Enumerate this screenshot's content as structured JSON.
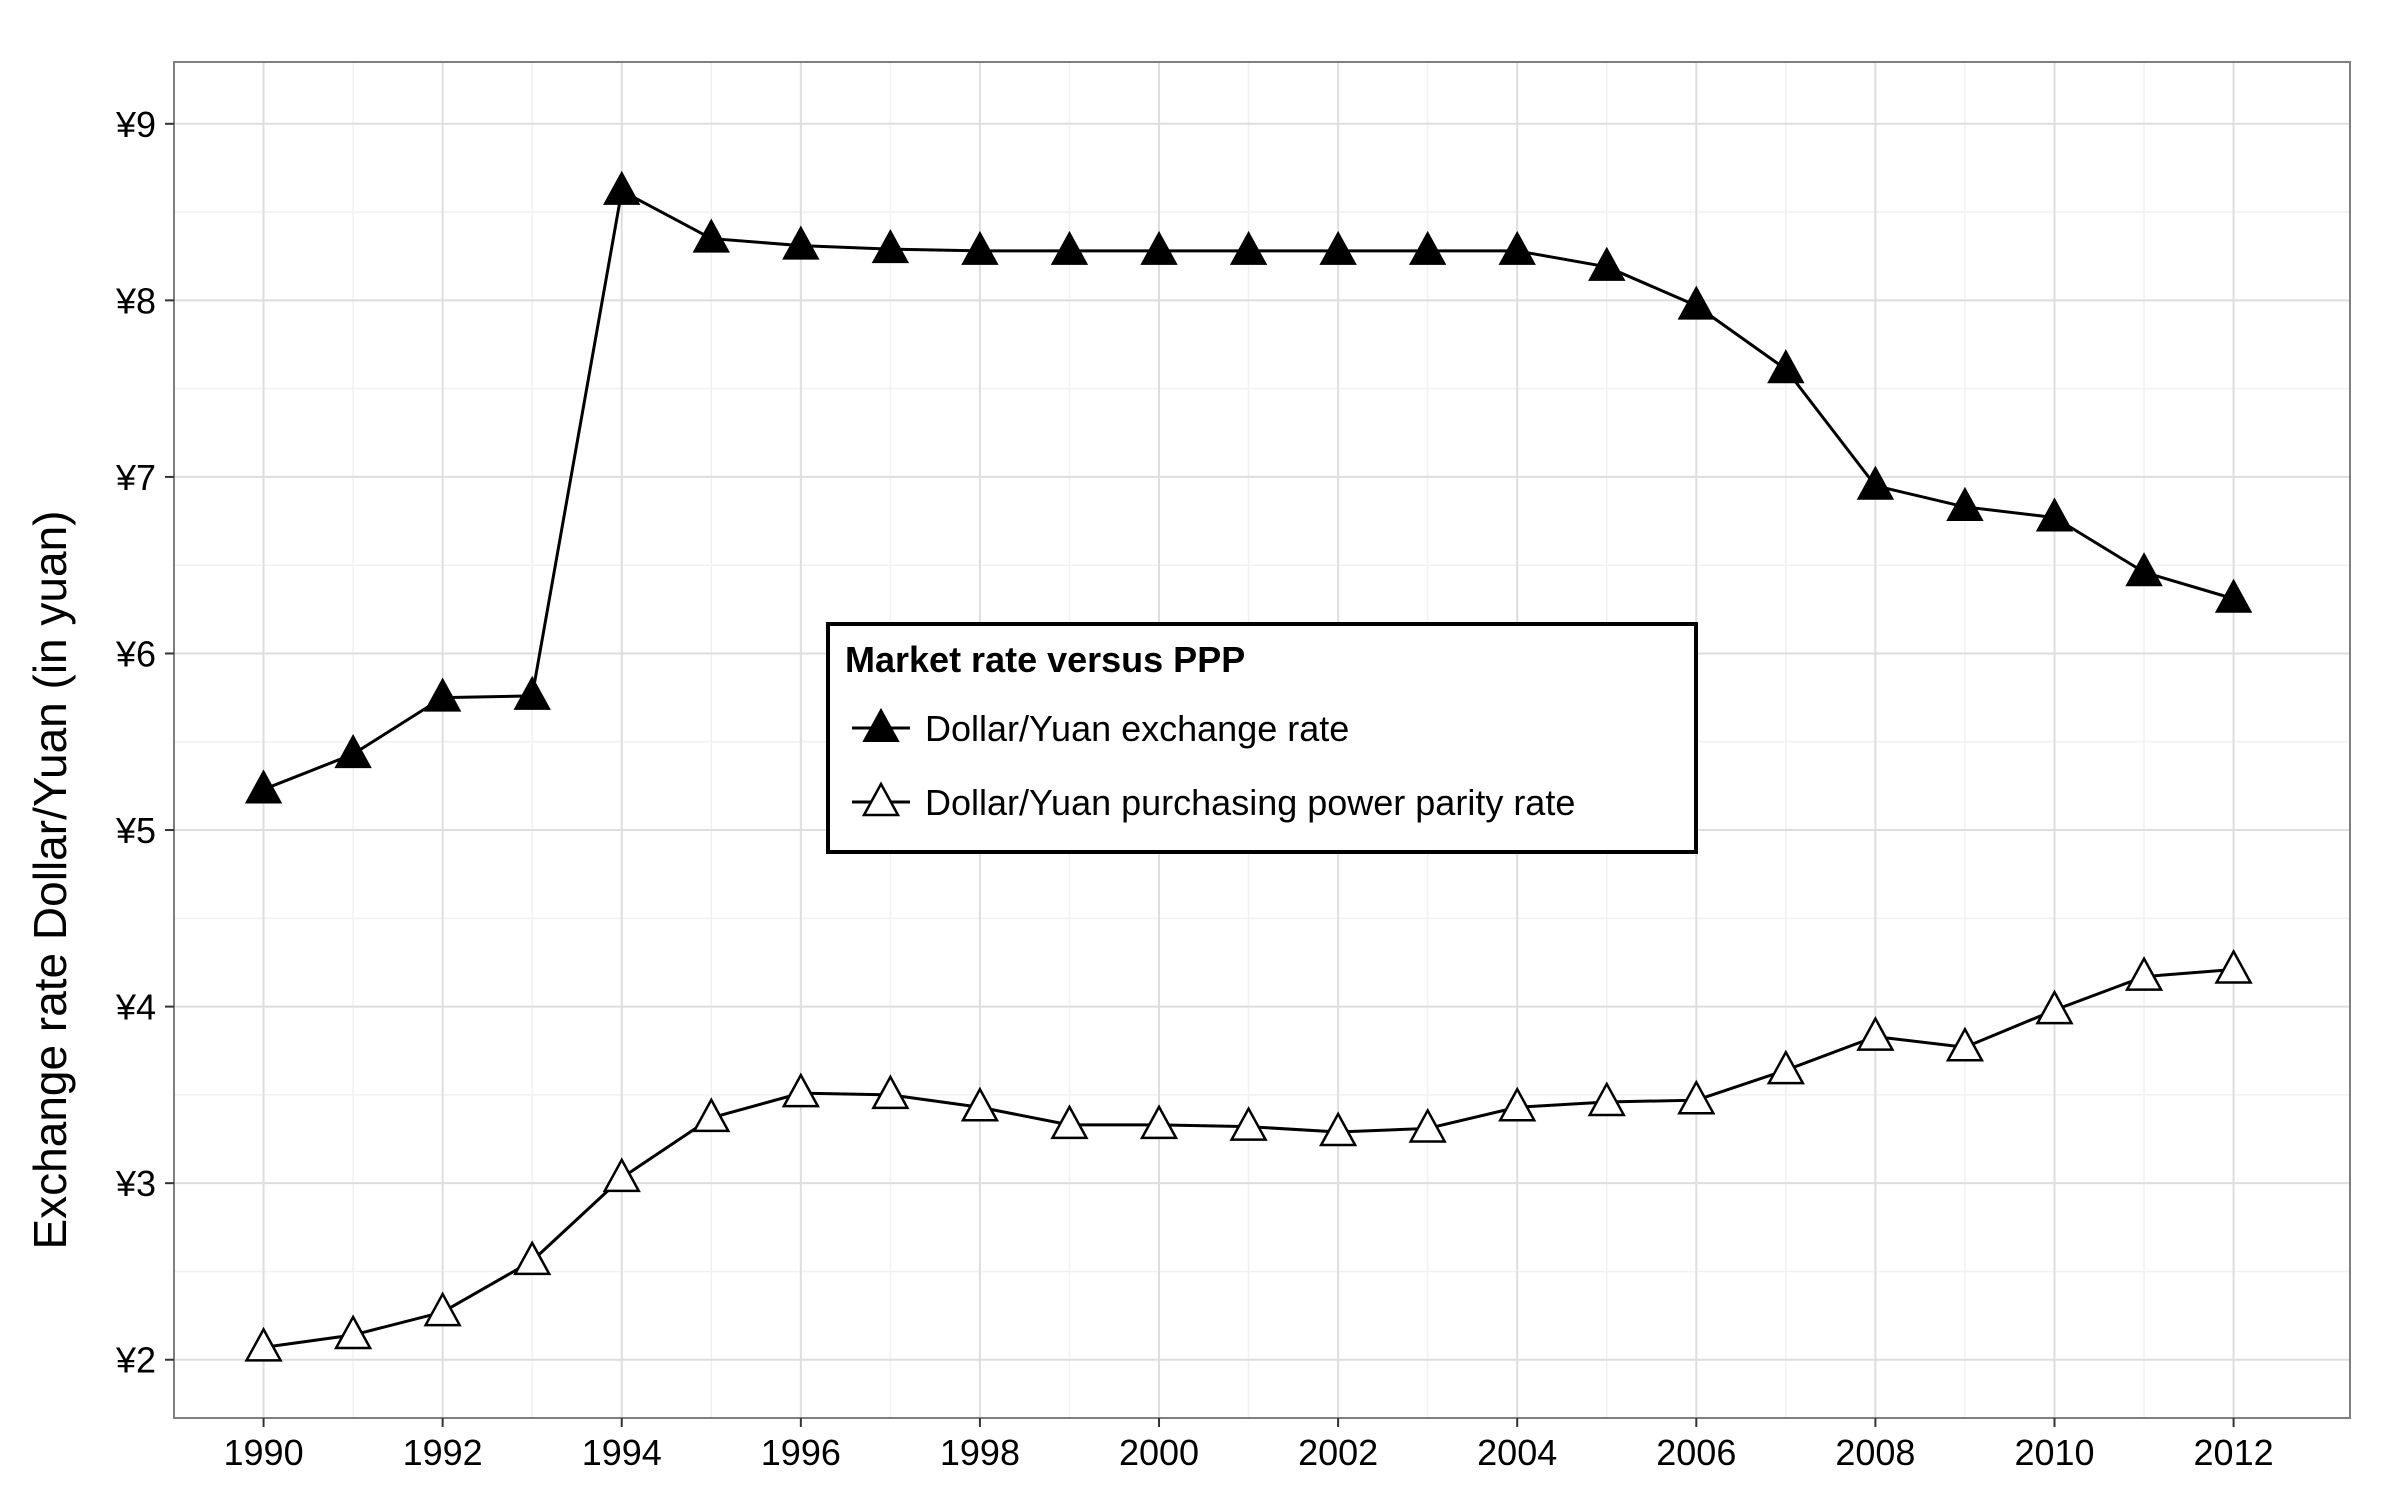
{
  "chart_data": {
    "type": "line",
    "title": "",
    "xlabel": "",
    "ylabel": "Exchange rate Dollar/Yuan (in yuan)",
    "x": [
      1990,
      1991,
      1992,
      1993,
      1994,
      1995,
      1996,
      1997,
      1998,
      1999,
      2000,
      2001,
      2002,
      2003,
      2004,
      2005,
      2006,
      2007,
      2008,
      2009,
      2010,
      2011,
      2012
    ],
    "xlim": [
      1989,
      2013.3
    ],
    "ylim": [
      1.67,
      9.35
    ],
    "x_ticks": [
      1990,
      1992,
      1994,
      1996,
      1998,
      2000,
      2002,
      2004,
      2006,
      2008,
      2010,
      2012
    ],
    "x_tick_labels": [
      "1990",
      "1992",
      "1994",
      "1996",
      "1998",
      "2000",
      "2002",
      "2004",
      "2006",
      "2008",
      "2010",
      "2012"
    ],
    "y_ticks": [
      2,
      3,
      4,
      5,
      6,
      7,
      8,
      9
    ],
    "y_tick_labels": [
      "¥2",
      "¥3",
      "¥4",
      "¥5",
      "¥6",
      "¥7",
      "¥8",
      "¥9"
    ],
    "grid": true,
    "legend": {
      "title": "Market rate versus PPP",
      "placement": "center"
    },
    "series": [
      {
        "name": "Dollar/Yuan exchange rate",
        "marker": "filled-triangle",
        "values": [
          5.23,
          5.43,
          5.75,
          5.76,
          8.62,
          8.35,
          8.31,
          8.29,
          8.28,
          8.28,
          8.28,
          8.28,
          8.28,
          8.28,
          8.28,
          8.19,
          7.97,
          7.61,
          6.95,
          6.83,
          6.77,
          6.46,
          6.31
        ]
      },
      {
        "name": "Dollar/Yuan purchasing power parity rate",
        "marker": "open-triangle",
        "values": [
          2.07,
          2.14,
          2.27,
          2.56,
          3.03,
          3.37,
          3.51,
          3.5,
          3.43,
          3.33,
          3.33,
          3.32,
          3.29,
          3.31,
          3.43,
          3.46,
          3.47,
          3.64,
          3.83,
          3.77,
          3.98,
          4.17,
          4.21
        ]
      }
    ],
    "colors": {
      "line": "#000000",
      "grid_major": "#dedede",
      "grid_minor": "#f1f1f1",
      "panel_border": "#7f7f7f"
    }
  }
}
